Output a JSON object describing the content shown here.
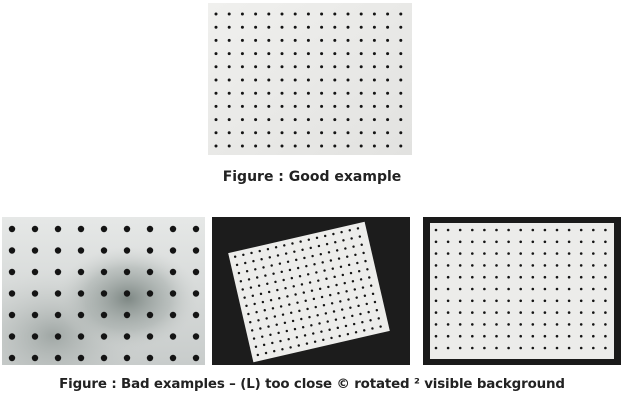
{
  "figures": {
    "good_example": {
      "caption": "Figure : Good example"
    },
    "bad_examples": {
      "caption": "Figure : Bad examples – (L) too close © rotated ² visible background"
    }
  },
  "colors": {
    "paper": "#e9e9e7",
    "dot": "#141414",
    "dark_background": "#1b1b1b",
    "caption_text": "#222222"
  }
}
